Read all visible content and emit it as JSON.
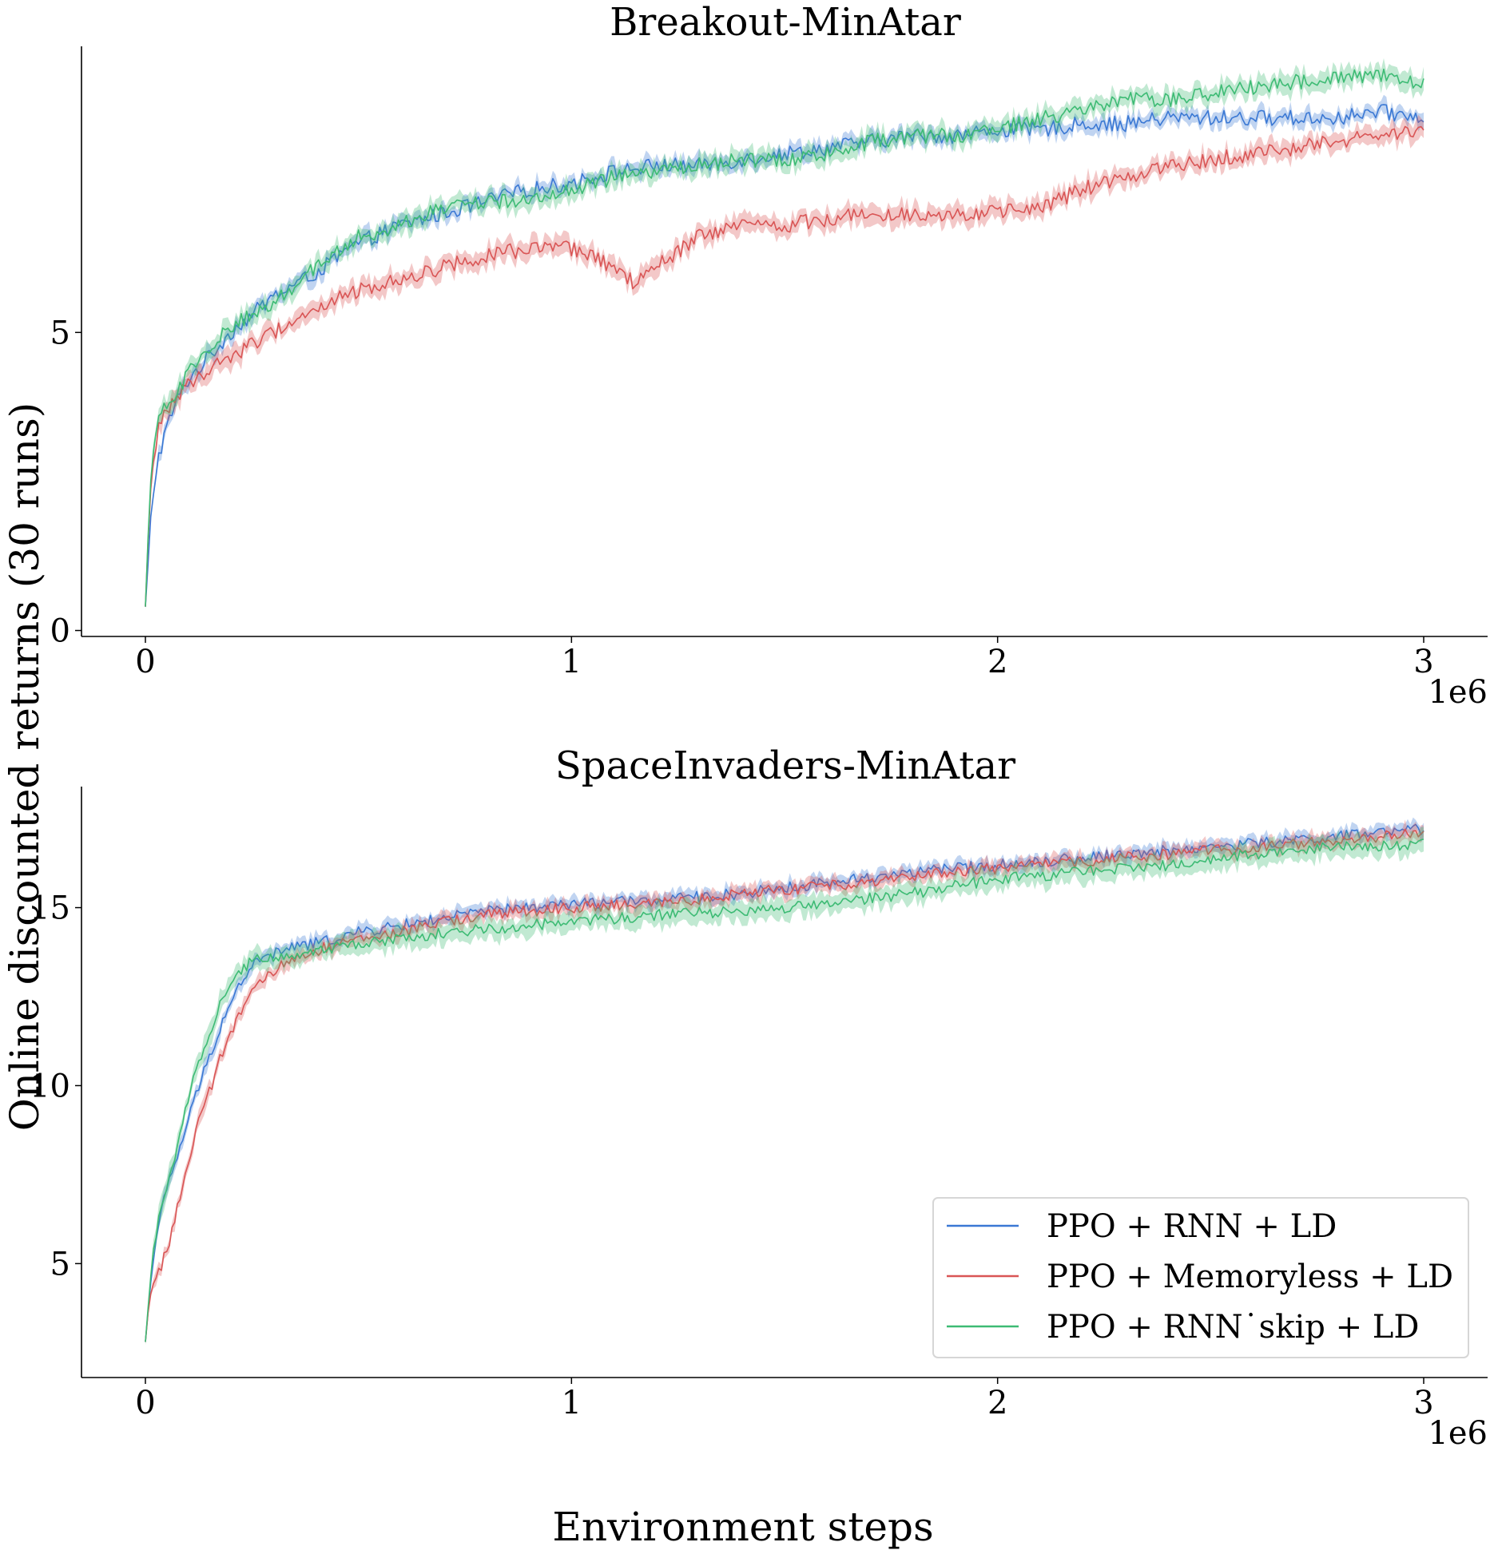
{
  "ylabel": "Online discounted returns (30 runs)",
  "xlabel": "Environment steps",
  "colors": {
    "PPO + RNN + LD": "#3a78d4",
    "PPO + Memoryless + LD": "#d95555",
    "PPO + RNN˙skip + LD": "#3dbb74"
  },
  "legend": {
    "placement": "lower-right of second panel",
    "entries": [
      "PPO + RNN + LD",
      "PPO + Memoryless + LD",
      "PPO + RNN˙skip + LD"
    ]
  },
  "chart_data": [
    {
      "type": "line",
      "title": "Breakout-MinAtar",
      "x_unit_label": "1e6",
      "xlim": [
        -0.15,
        3.15
      ],
      "ylim": [
        -0.1,
        9.8
      ],
      "xticks": [
        0,
        1,
        2,
        3
      ],
      "xtick_labels": [
        "0",
        "1",
        "2",
        "3"
      ],
      "yticks": [
        0,
        5
      ],
      "ytick_labels": [
        "0",
        "5"
      ],
      "grid": false,
      "shaded_band": true,
      "series": [
        {
          "name": "PPO + RNN + LD",
          "x": [
            0,
            0.005,
            0.01,
            0.02,
            0.03,
            0.05,
            0.07,
            0.1,
            0.15,
            0.2,
            0.25,
            0.3,
            0.4,
            0.5,
            0.6,
            0.7,
            0.8,
            0.9,
            1.0,
            1.1,
            1.2,
            1.3,
            1.4,
            1.5,
            1.6,
            1.7,
            1.8,
            1.9,
            2.0,
            2.1,
            2.2,
            2.3,
            2.4,
            2.5,
            2.6,
            2.7,
            2.8,
            2.9,
            3.0
          ],
          "y": [
            0.4,
            0.9,
            1.7,
            2.4,
            2.9,
            3.4,
            3.8,
            4.2,
            4.6,
            5.0,
            5.3,
            5.6,
            6.0,
            6.5,
            6.8,
            7.0,
            7.2,
            7.4,
            7.5,
            7.7,
            7.8,
            7.8,
            7.9,
            8.0,
            8.1,
            8.2,
            8.3,
            8.3,
            8.4,
            8.4,
            8.5,
            8.5,
            8.6,
            8.6,
            8.6,
            8.6,
            8.6,
            8.7,
            8.6
          ],
          "band": 0.12
        },
        {
          "name": "PPO + Memoryless + LD",
          "x": [
            0,
            0.005,
            0.01,
            0.02,
            0.03,
            0.05,
            0.07,
            0.1,
            0.15,
            0.2,
            0.25,
            0.3,
            0.4,
            0.5,
            0.6,
            0.7,
            0.8,
            0.9,
            1.0,
            1.1,
            1.15,
            1.2,
            1.3,
            1.4,
            1.5,
            1.6,
            1.7,
            1.8,
            1.9,
            2.0,
            2.1,
            2.2,
            2.3,
            2.4,
            2.5,
            2.6,
            2.7,
            2.8,
            2.9,
            3.0
          ],
          "y": [
            0.4,
            1.2,
            2.2,
            2.9,
            3.4,
            3.7,
            3.9,
            4.1,
            4.4,
            4.6,
            4.8,
            5.0,
            5.4,
            5.7,
            5.9,
            6.1,
            6.3,
            6.4,
            6.4,
            6.1,
            5.8,
            6.1,
            6.6,
            6.8,
            6.8,
            6.9,
            7.0,
            7.0,
            7.0,
            7.0,
            7.1,
            7.4,
            7.6,
            7.8,
            7.9,
            8.0,
            8.1,
            8.2,
            8.3,
            8.4
          ],
          "band": 0.15
        },
        {
          "name": "PPO + RNN˙skip + LD",
          "x": [
            0,
            0.005,
            0.01,
            0.02,
            0.03,
            0.05,
            0.07,
            0.1,
            0.15,
            0.2,
            0.25,
            0.3,
            0.4,
            0.5,
            0.6,
            0.7,
            0.8,
            0.9,
            1.0,
            1.1,
            1.2,
            1.3,
            1.4,
            1.5,
            1.6,
            1.7,
            1.8,
            1.9,
            2.0,
            2.1,
            2.2,
            2.3,
            2.4,
            2.5,
            2.6,
            2.7,
            2.8,
            2.9,
            3.0
          ],
          "y": [
            0.4,
            1.3,
            2.4,
            3.0,
            3.5,
            3.8,
            4.0,
            4.3,
            4.7,
            5.1,
            5.3,
            5.5,
            6.1,
            6.6,
            6.8,
            7.1,
            7.2,
            7.2,
            7.4,
            7.6,
            7.7,
            7.8,
            7.9,
            7.9,
            8.0,
            8.2,
            8.3,
            8.3,
            8.4,
            8.6,
            8.7,
            8.9,
            8.9,
            9.0,
            9.1,
            9.2,
            9.3,
            9.3,
            9.2
          ],
          "band": 0.15
        }
      ]
    },
    {
      "type": "line",
      "title": "SpaceInvaders-MinAtar",
      "x_unit_label": "1e6",
      "xlim": [
        -0.15,
        3.15
      ],
      "ylim": [
        1.8,
        18.4
      ],
      "xticks": [
        0,
        1,
        2,
        3
      ],
      "xtick_labels": [
        "0",
        "1",
        "2",
        "3"
      ],
      "yticks": [
        5,
        10,
        15
      ],
      "ytick_labels": [
        "5",
        "10",
        "15"
      ],
      "grid": false,
      "shaded_band": true,
      "series": [
        {
          "name": "PPO + RNN + LD",
          "x": [
            0,
            0.01,
            0.02,
            0.04,
            0.06,
            0.08,
            0.1,
            0.12,
            0.15,
            0.18,
            0.2,
            0.22,
            0.25,
            0.3,
            0.35,
            0.4,
            0.5,
            0.6,
            0.7,
            0.8,
            0.9,
            1.0,
            1.2,
            1.4,
            1.6,
            1.8,
            2.0,
            2.2,
            2.4,
            2.6,
            2.8,
            3.0
          ],
          "y": [
            2.8,
            4.2,
            5.3,
            6.6,
            7.5,
            8.2,
            9.0,
            9.8,
            10.8,
            11.8,
            12.3,
            12.8,
            13.4,
            13.7,
            13.9,
            14.0,
            14.3,
            14.5,
            14.7,
            14.9,
            15.0,
            15.1,
            15.2,
            15.4,
            15.7,
            16.0,
            16.2,
            16.4,
            16.6,
            16.8,
            17.0,
            17.2
          ],
          "band": 0.18
        },
        {
          "name": "PPO + Memoryless + LD",
          "x": [
            0,
            0.01,
            0.02,
            0.04,
            0.06,
            0.08,
            0.1,
            0.12,
            0.15,
            0.18,
            0.2,
            0.22,
            0.25,
            0.3,
            0.35,
            0.4,
            0.5,
            0.6,
            0.7,
            0.8,
            0.9,
            1.0,
            1.2,
            1.4,
            1.6,
            1.8,
            2.0,
            2.2,
            2.4,
            2.6,
            2.8,
            3.0
          ],
          "y": [
            2.8,
            4.1,
            4.5,
            5.0,
            5.8,
            6.8,
            7.8,
            8.8,
            9.8,
            10.9,
            11.5,
            12.0,
            12.6,
            13.2,
            13.6,
            13.8,
            14.1,
            14.3,
            14.6,
            14.8,
            14.9,
            15.0,
            15.1,
            15.4,
            15.6,
            15.9,
            16.1,
            16.3,
            16.5,
            16.7,
            16.9,
            17.1
          ],
          "band": 0.2
        },
        {
          "name": "PPO + RNN˙skip + LD",
          "x": [
            0,
            0.01,
            0.02,
            0.04,
            0.06,
            0.08,
            0.1,
            0.12,
            0.15,
            0.18,
            0.2,
            0.22,
            0.25,
            0.3,
            0.35,
            0.4,
            0.5,
            0.6,
            0.7,
            0.8,
            0.9,
            1.0,
            1.2,
            1.4,
            1.6,
            1.8,
            2.0,
            2.2,
            2.4,
            2.6,
            2.8,
            3.0
          ],
          "y": [
            2.8,
            4.3,
            5.5,
            6.8,
            7.7,
            8.5,
            9.6,
            10.5,
            11.5,
            12.4,
            12.8,
            13.2,
            13.5,
            13.6,
            13.7,
            13.8,
            14.0,
            14.1,
            14.3,
            14.4,
            14.5,
            14.6,
            14.8,
            14.9,
            15.1,
            15.4,
            15.8,
            16.0,
            16.2,
            16.5,
            16.7,
            16.8
          ],
          "band": 0.28
        }
      ]
    }
  ]
}
